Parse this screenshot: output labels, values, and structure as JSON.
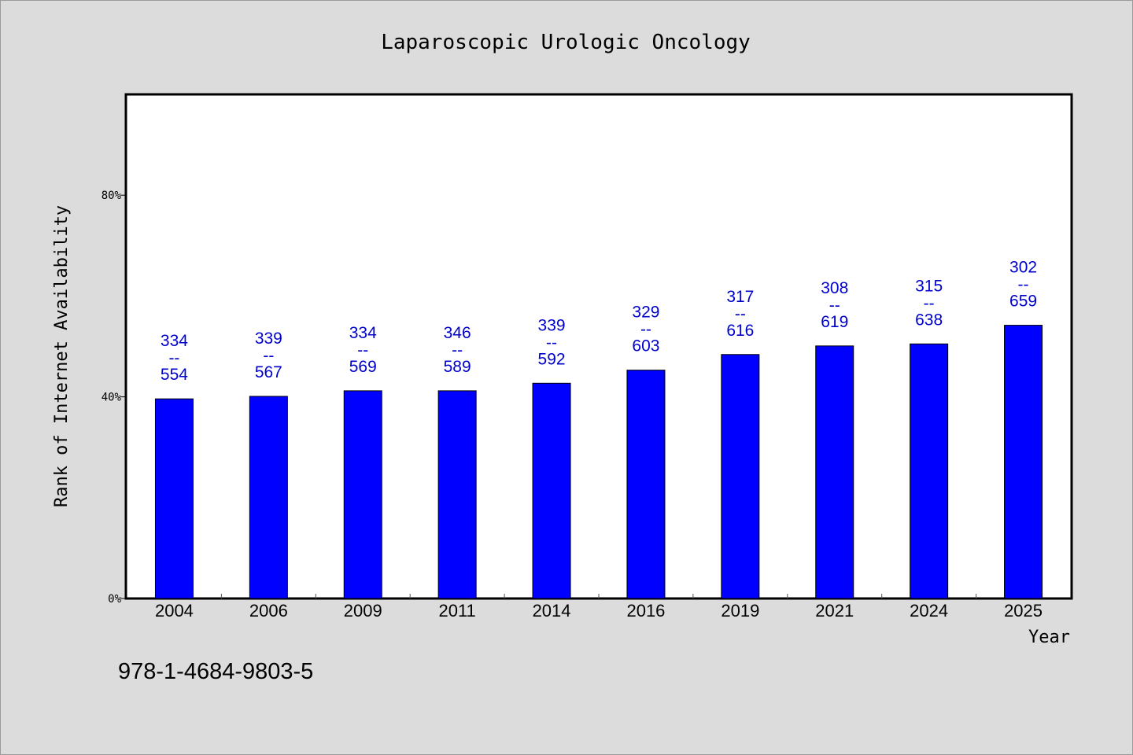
{
  "chart_data": {
    "type": "bar",
    "title": "Laparoscopic Urologic Oncology",
    "xlabel": "Year",
    "ylabel": "Rank of Internet Availability",
    "categories": [
      "2004",
      "2006",
      "2009",
      "2011",
      "2014",
      "2016",
      "2019",
      "2021",
      "2024",
      "2025"
    ],
    "values": [
      39.6,
      40.1,
      41.2,
      41.2,
      42.7,
      45.3,
      48.4,
      50.1,
      50.5,
      54.2
    ],
    "value_unit": "%",
    "ylim": [
      0,
      100
    ],
    "yticks": [
      0,
      40,
      80
    ],
    "ytick_labels": [
      "0%",
      "40%",
      "80%"
    ],
    "data_labels": [
      {
        "top": "334",
        "sep": "--",
        "bottom": "554"
      },
      {
        "top": "339",
        "sep": "--",
        "bottom": "567"
      },
      {
        "top": "334",
        "sep": "--",
        "bottom": "569"
      },
      {
        "top": "346",
        "sep": "--",
        "bottom": "589"
      },
      {
        "top": "339",
        "sep": "--",
        "bottom": "592"
      },
      {
        "top": "329",
        "sep": "--",
        "bottom": "603"
      },
      {
        "top": "317",
        "sep": "--",
        "bottom": "616"
      },
      {
        "top": "308",
        "sep": "--",
        "bottom": "619"
      },
      {
        "top": "315",
        "sep": "--",
        "bottom": "638"
      },
      {
        "top": "302",
        "sep": "--",
        "bottom": "659"
      }
    ],
    "grid": false,
    "bar_color": "#0000ff",
    "label_color": "#0000cc"
  },
  "footer": {
    "isbn": "978-1-4684-9803-5"
  },
  "colors": {
    "background": "#dcdcdc",
    "plot_background": "#ffffff"
  }
}
